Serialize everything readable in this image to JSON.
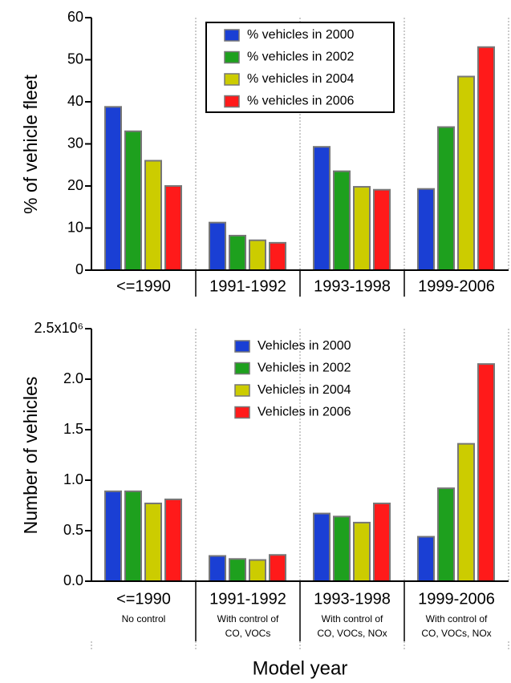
{
  "chart_data": [
    {
      "type": "bar",
      "ylabel": "% of vehicle fleet",
      "categories": [
        "<=1990",
        "1991-1992",
        "1993-1998",
        "1999-2006"
      ],
      "series": [
        {
          "name": "% vehicles in 2000",
          "color": "#1a3fd4",
          "values": [
            38.8,
            11.3,
            29.3,
            19.3
          ]
        },
        {
          "name": "% vehicles in 2002",
          "color": "#1ea01e",
          "values": [
            33,
            8.2,
            23.5,
            34
          ]
        },
        {
          "name": "% vehicles in 2004",
          "color": "#cccc00",
          "values": [
            26,
            7.1,
            19.8,
            46
          ]
        },
        {
          "name": "% vehicles in 2006",
          "color": "#ff1a1a",
          "values": [
            20,
            6.5,
            19.1,
            53
          ]
        }
      ],
      "ylim": [
        0,
        60
      ],
      "yticks": [
        0,
        10,
        20,
        30,
        40,
        50,
        60
      ],
      "legend_frame": true
    },
    {
      "type": "bar",
      "ylabel": "Number of vehicles",
      "xlabel": "Model year",
      "categories": [
        "<=1990",
        "1991-1992",
        "1993-1998",
        "1999-2006"
      ],
      "sublabels": [
        [
          "No control"
        ],
        [
          "With control of",
          "CO, VOCs"
        ],
        [
          "With control of",
          "CO, VOCs, NOx"
        ],
        [
          "With control of",
          "CO, VOCs, NOx"
        ]
      ],
      "series": [
        {
          "name": "Vehicles in 2000",
          "color": "#1a3fd4",
          "values": [
            890000,
            250000,
            670000,
            440000
          ]
        },
        {
          "name": "Vehicles in 2002",
          "color": "#1ea01e",
          "values": [
            890000,
            220000,
            640000,
            920000
          ]
        },
        {
          "name": "Vehicles in 2004",
          "color": "#cccc00",
          "values": [
            770000,
            210000,
            580000,
            1360000
          ]
        },
        {
          "name": "Vehicles in 2006",
          "color": "#ff1a1a",
          "values": [
            810000,
            260000,
            770000,
            2150000
          ]
        }
      ],
      "ylim": [
        0,
        2500000
      ],
      "yticks": [
        {
          "value": 0,
          "label": "0.0"
        },
        {
          "value": 500000,
          "label": "0.5"
        },
        {
          "value": 1000000,
          "label": "1.0"
        },
        {
          "value": 1500000,
          "label": "1.5"
        },
        {
          "value": 2000000,
          "label": "2.0"
        },
        {
          "value": 2500000,
          "label": "2.5x10⁶"
        }
      ],
      "legend_frame": false
    }
  ]
}
